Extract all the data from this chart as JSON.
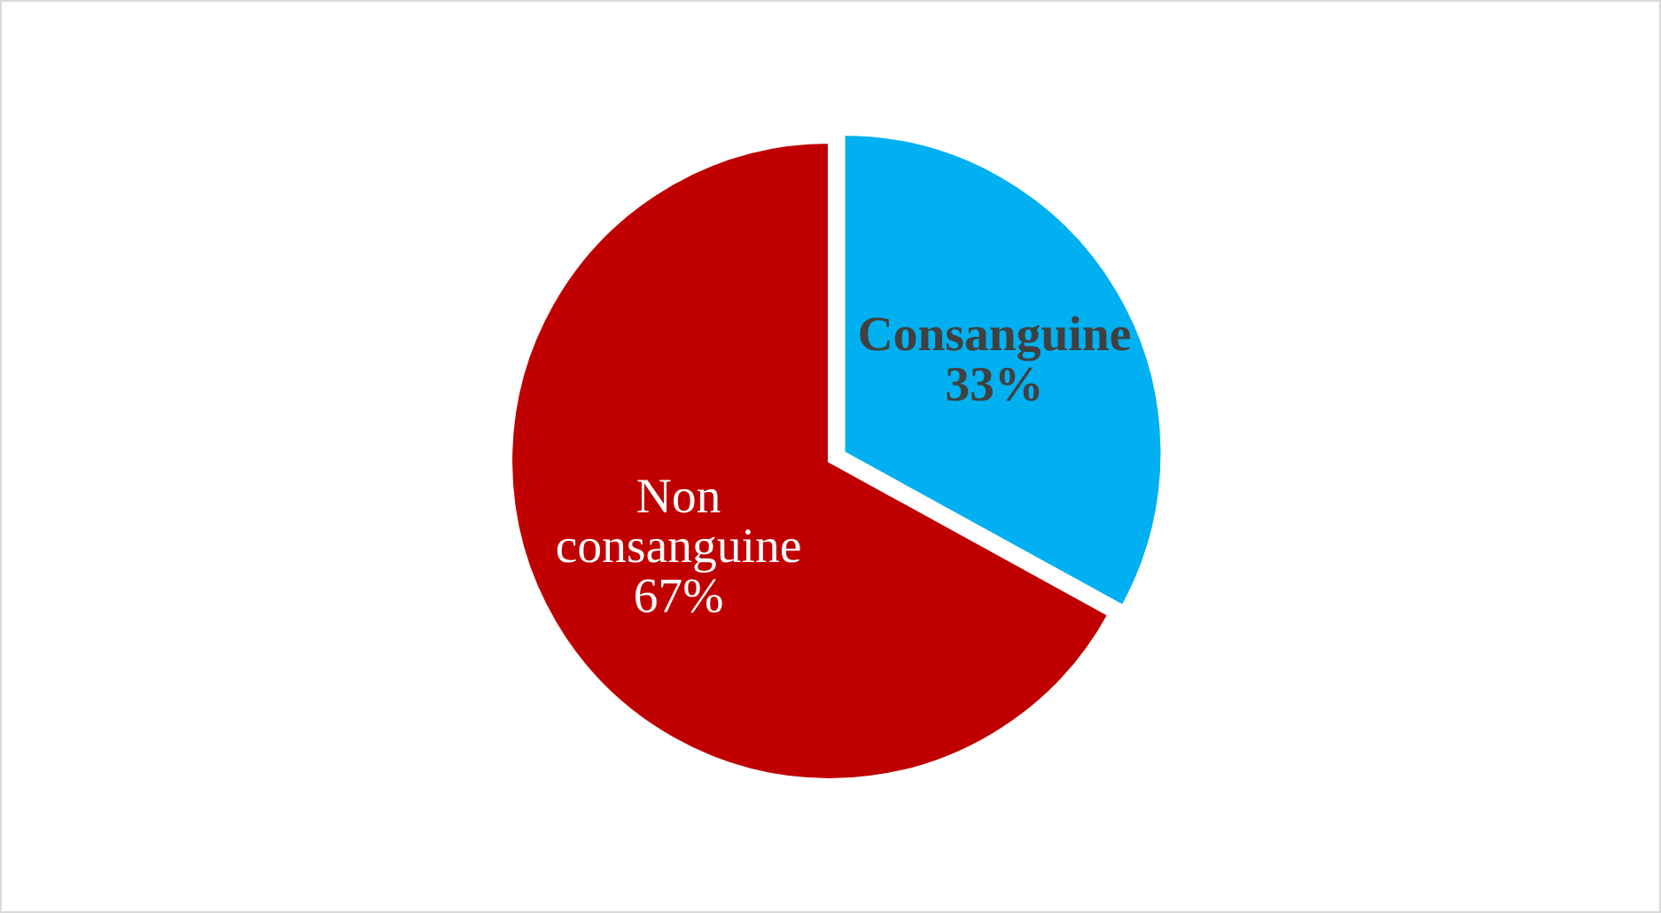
{
  "chart_data": {
    "type": "pie",
    "categories": [
      "Consanguine",
      "Non consanguine"
    ],
    "values": [
      33,
      67
    ],
    "value_labels": [
      "33%",
      "67%"
    ],
    "colors": [
      "#00b0f0",
      "#c00000"
    ]
  }
}
